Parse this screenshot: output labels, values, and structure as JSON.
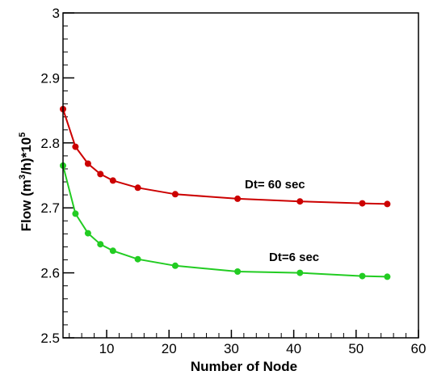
{
  "chart_data": {
    "type": "line",
    "xlabel": "Number of Node",
    "ylabel": {
      "prefix": "Flow (m",
      "sup1": "3",
      "middle": "/h)*10",
      "sup2": "5"
    },
    "xlim": [
      3,
      60
    ],
    "ylim": [
      2.5,
      3.0
    ],
    "x_ticks": [
      10,
      20,
      30,
      40,
      50,
      60
    ],
    "x_tick_labels": [
      "10",
      "20",
      "30",
      "40",
      "50",
      "60"
    ],
    "y_ticks": [
      2.5,
      2.6,
      2.7,
      2.8,
      2.9,
      3.0
    ],
    "y_tick_labels": [
      "2.5",
      "2.6",
      "2.7",
      "2.8",
      "2.9",
      "3"
    ],
    "series": [
      {
        "name": "Dt= 60 sec",
        "color": "#cc0000",
        "x": [
          3,
          5,
          7,
          9,
          11,
          15,
          21,
          31,
          41,
          51,
          55
        ],
        "y": [
          2.852,
          2.794,
          2.768,
          2.752,
          2.742,
          2.731,
          2.721,
          2.714,
          2.71,
          2.707,
          2.706
        ]
      },
      {
        "name": "Dt=6 sec",
        "color": "#22cc22",
        "x": [
          3,
          5,
          7,
          9,
          11,
          15,
          21,
          31,
          41,
          51,
          55
        ],
        "y": [
          2.765,
          2.691,
          2.661,
          2.644,
          2.634,
          2.621,
          2.611,
          2.602,
          2.6,
          2.595,
          2.594
        ]
      }
    ]
  }
}
